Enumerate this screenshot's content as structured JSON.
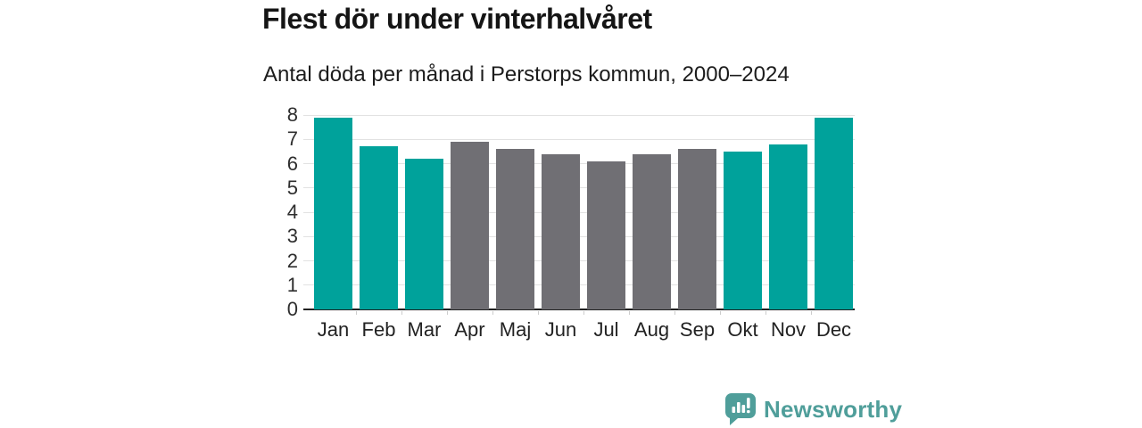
{
  "header": {
    "title": "Flest dör under vinterhalvåret",
    "subtitle": "Antal döda per månad i Perstorps kommun, 2000–2024"
  },
  "chart_data": {
    "type": "bar",
    "title": "Flest dör under vinterhalvåret",
    "subtitle": "Antal döda per månad i Perstorps kommun, 2000–2024",
    "categories": [
      "Jan",
      "Feb",
      "Mar",
      "Apr",
      "Maj",
      "Jun",
      "Jul",
      "Aug",
      "Sep",
      "Okt",
      "Nov",
      "Dec"
    ],
    "values": [
      7.9,
      6.7,
      6.2,
      6.9,
      6.6,
      6.4,
      6.1,
      6.4,
      6.6,
      6.5,
      6.8,
      7.9
    ],
    "bar_colors": [
      "teal",
      "teal",
      "teal",
      "gray",
      "gray",
      "gray",
      "gray",
      "gray",
      "gray",
      "teal",
      "teal",
      "teal"
    ],
    "xlabel": "",
    "ylabel": "",
    "ylim": [
      0,
      8
    ],
    "yticks": [
      0,
      1,
      2,
      3,
      4,
      5,
      6,
      7,
      8
    ],
    "grid": "horizontal",
    "legend": "none"
  },
  "colors": {
    "teal": "#00a29b",
    "gray": "#706f74",
    "brand_teal": "#4f9e9a",
    "gridline": "#e2e2e2",
    "axis_line": "#222222",
    "title_text": "#151515",
    "tick_label": "#2e2e2e"
  },
  "footer": {
    "brand_name": "Newsworthy",
    "logo_icon": "bar-chart-speech-bubble-icon"
  }
}
